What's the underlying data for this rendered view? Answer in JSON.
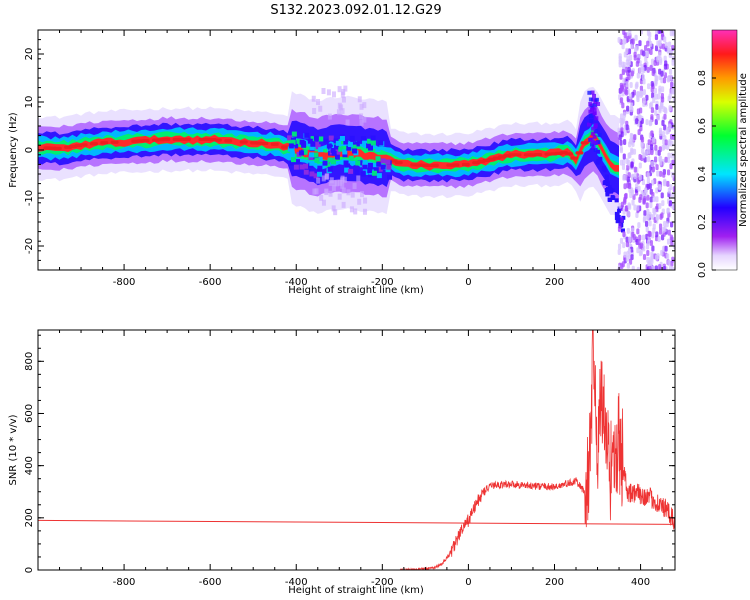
{
  "title": "S132.2023.092.01.12.G29",
  "chart_data": [
    {
      "type": "heatmap",
      "title": "",
      "xlabel": "Height of straight line (km)",
      "ylabel": "Frequency (Hz)",
      "xlim": [
        -1000,
        480
      ],
      "ylim": [
        -25,
        25
      ],
      "xticks": [
        -800,
        -600,
        -400,
        -200,
        0,
        200,
        400
      ],
      "yticks": [
        20,
        10,
        0,
        -10,
        -20
      ],
      "colorbar": {
        "label": "Normalized spectral amplitude",
        "range": [
          0,
          1
        ],
        "ticks": [
          "0.0",
          "0.2",
          "0.4",
          "0.6",
          "0.8"
        ],
        "colormap": "rainbow (white-purple-blue-cyan-green-yellow-red-magenta)"
      },
      "ridge": {
        "x": [
          -1000,
          -950,
          -900,
          -850,
          -800,
          -700,
          -600,
          -500,
          -450,
          -400,
          -350,
          -300,
          -250,
          -200,
          -150,
          -100,
          -50,
          0,
          50,
          100,
          150,
          200,
          230,
          250,
          270,
          290,
          310,
          330,
          350
        ],
        "freq": [
          0.5,
          0.3,
          1.0,
          1.5,
          1.7,
          2.2,
          2.2,
          1.5,
          1.2,
          0.0,
          -1.5,
          -0.5,
          -1.0,
          -1.5,
          -3.0,
          -3.2,
          -3.2,
          -3.0,
          -2.0,
          -1.0,
          -1.0,
          -0.8,
          -0.5,
          -2.0,
          1.5,
          3.0,
          0.0,
          -3.0,
          -4.0
        ]
      },
      "noise_region_x": [
        370,
        480
      ]
    },
    {
      "type": "line",
      "title": "",
      "xlabel": "Height of straight line (km)",
      "ylabel": "SNR (10 * v/v)",
      "xlim": [
        -1000,
        480
      ],
      "ylim": [
        0,
        920
      ],
      "xticks": [
        -800,
        -600,
        -400,
        -200,
        0,
        200,
        400
      ],
      "yticks": [
        0,
        200,
        400,
        600,
        800
      ],
      "color": "#ee3333",
      "series": [
        {
          "x": [
            -160,
            -120,
            -80,
            -60,
            -40,
            -20,
            0,
            20,
            40,
            60,
            100,
            150,
            200,
            250,
            270,
            280,
            290,
            300,
            310,
            320,
            330,
            350,
            370,
            400,
            430,
            460,
            480
          ],
          "values": [
            0,
            3,
            8,
            25,
            70,
            140,
            190,
            260,
            310,
            325,
            330,
            322,
            318,
            340,
            300,
            350,
            880,
            420,
            700,
            480,
            420,
            500,
            300,
            290,
            270,
            230,
            180
          ]
        },
        {
          "x": [
            -1000,
            480
          ],
          "values": [
            190,
            175
          ]
        }
      ]
    }
  ]
}
